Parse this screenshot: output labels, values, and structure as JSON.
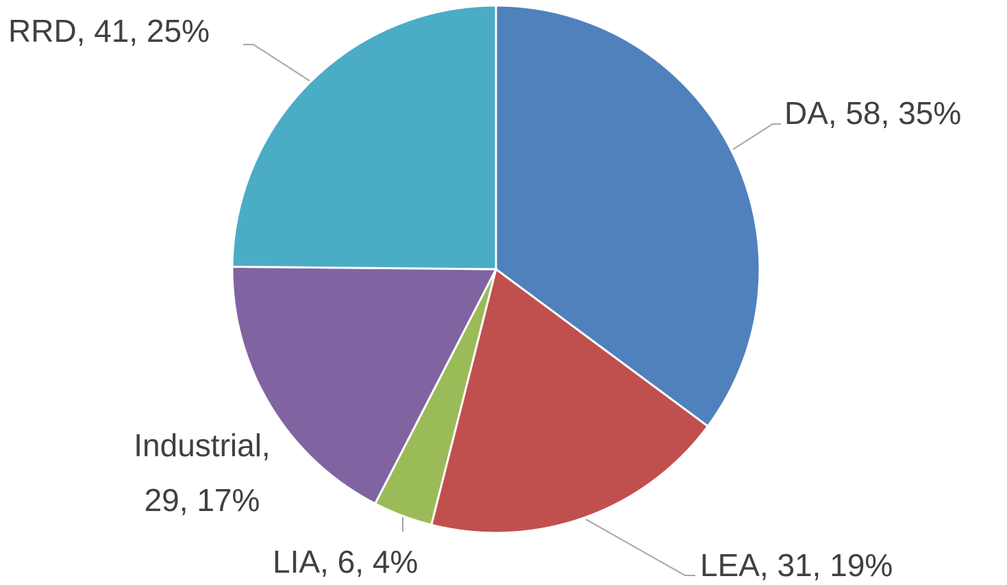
{
  "chart_data": {
    "type": "pie",
    "values": [
      58,
      31,
      6,
      29,
      41
    ],
    "colors": [
      "#4f81bd",
      "#c0504d",
      "#9bbb59",
      "#8064a2",
      "#4bacc6"
    ],
    "value_labels": [
      "DA, 58, 35%",
      "LEA, 31, 19%",
      "LIA, 6, 4%",
      "Industrial, 29, 17%",
      "RRD, 41, 25%"
    ]
  }
}
